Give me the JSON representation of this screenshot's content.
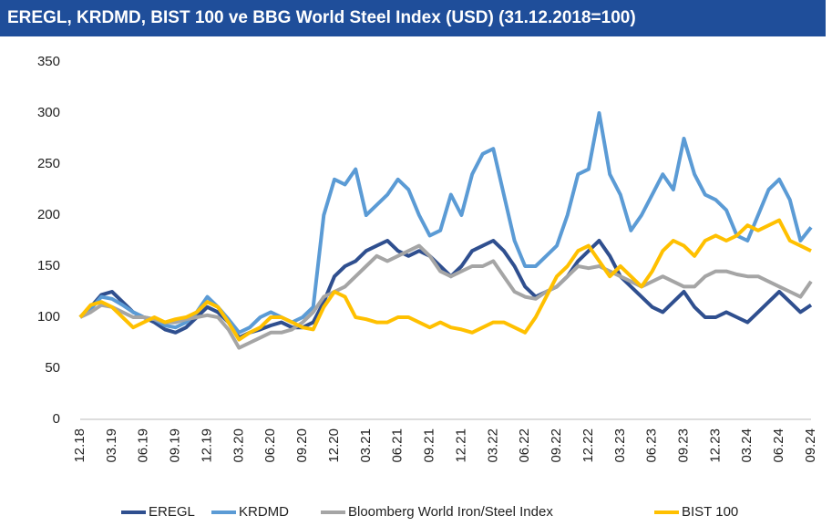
{
  "chart_data": {
    "type": "line",
    "title": "EREGL, KRDMD, BIST 100 ve BBG World Steel Index (USD) (31.12.2018=100)",
    "categories": [
      "12.18",
      null,
      null,
      "03.19",
      null,
      null,
      "06.19",
      null,
      null,
      "09.19",
      null,
      null,
      "12.19",
      null,
      null,
      "03.20",
      null,
      null,
      "06.20",
      null,
      null,
      "09.20",
      null,
      null,
      "12.20",
      null,
      null,
      "03.21",
      null,
      null,
      "06.21",
      null,
      null,
      "09.21",
      null,
      null,
      "12.21",
      null,
      null,
      "03.22",
      null,
      null,
      "06.22",
      null,
      null,
      "09.22",
      null,
      null,
      "12.22",
      null,
      null,
      "03.23",
      null,
      null,
      "06.23",
      null,
      null,
      "09.23",
      null,
      null,
      "12.23",
      null,
      null,
      "03.24",
      null,
      null,
      "06.24",
      null,
      null,
      "09.24"
    ],
    "series": [
      {
        "name": "EREGL",
        "color": "#2f4f8f",
        "values": [
          100,
          110,
          122,
          125,
          115,
          105,
          100,
          95,
          88,
          85,
          90,
          100,
          110,
          105,
          95,
          80,
          85,
          88,
          92,
          95,
          90,
          90,
          95,
          115,
          140,
          150,
          155,
          165,
          170,
          175,
          165,
          160,
          165,
          160,
          150,
          140,
          150,
          165,
          170,
          175,
          165,
          150,
          130,
          120,
          125,
          130,
          140,
          155,
          165,
          175,
          160,
          140,
          130,
          120,
          110,
          105,
          115,
          125,
          110,
          100,
          100,
          105,
          100,
          95,
          105,
          115,
          125,
          115,
          105,
          112
        ]
      },
      {
        "name": "KRDMD",
        "color": "#5b9bd5",
        "values": [
          100,
          108,
          120,
          118,
          112,
          105,
          100,
          98,
          92,
          90,
          95,
          105,
          120,
          110,
          98,
          85,
          90,
          100,
          105,
          100,
          95,
          100,
          110,
          200,
          235,
          230,
          245,
          200,
          210,
          220,
          235,
          225,
          200,
          180,
          185,
          220,
          200,
          240,
          260,
          265,
          220,
          175,
          150,
          150,
          160,
          170,
          200,
          240,
          245,
          300,
          240,
          220,
          185,
          200,
          220,
          240,
          225,
          275,
          240,
          220,
          215,
          205,
          180,
          175,
          200,
          225,
          235,
          215,
          175,
          188
        ]
      },
      {
        "name": "Bloomberg World Iron/Steel Index",
        "color": "#a5a5a5",
        "values": [
          100,
          105,
          112,
          110,
          105,
          100,
          100,
          98,
          95,
          95,
          98,
          100,
          102,
          100,
          88,
          70,
          75,
          80,
          85,
          85,
          88,
          95,
          105,
          120,
          125,
          130,
          140,
          150,
          160,
          155,
          160,
          165,
          170,
          160,
          145,
          140,
          145,
          150,
          150,
          155,
          140,
          125,
          120,
          118,
          125,
          130,
          140,
          150,
          148,
          150,
          145,
          140,
          135,
          130,
          135,
          140,
          135,
          130,
          130,
          140,
          145,
          145,
          142,
          140,
          140,
          135,
          130,
          125,
          120,
          135
        ]
      },
      {
        "name": "BIST 100",
        "color": "#ffc000",
        "values": [
          100,
          112,
          115,
          110,
          100,
          90,
          95,
          100,
          95,
          98,
          100,
          105,
          115,
          110,
          95,
          78,
          85,
          90,
          100,
          100,
          95,
          90,
          88,
          110,
          125,
          120,
          100,
          98,
          95,
          95,
          100,
          100,
          95,
          90,
          95,
          90,
          88,
          85,
          90,
          95,
          95,
          90,
          85,
          100,
          120,
          140,
          150,
          165,
          170,
          155,
          140,
          150,
          140,
          130,
          145,
          165,
          175,
          170,
          160,
          175,
          180,
          175,
          180,
          190,
          185,
          190,
          195,
          175,
          170,
          165
        ]
      }
    ],
    "ylim": [
      0,
      350
    ],
    "yticks": [
      0,
      50,
      100,
      150,
      200,
      250,
      300,
      350
    ],
    "grid": false,
    "legend": "bottom"
  }
}
